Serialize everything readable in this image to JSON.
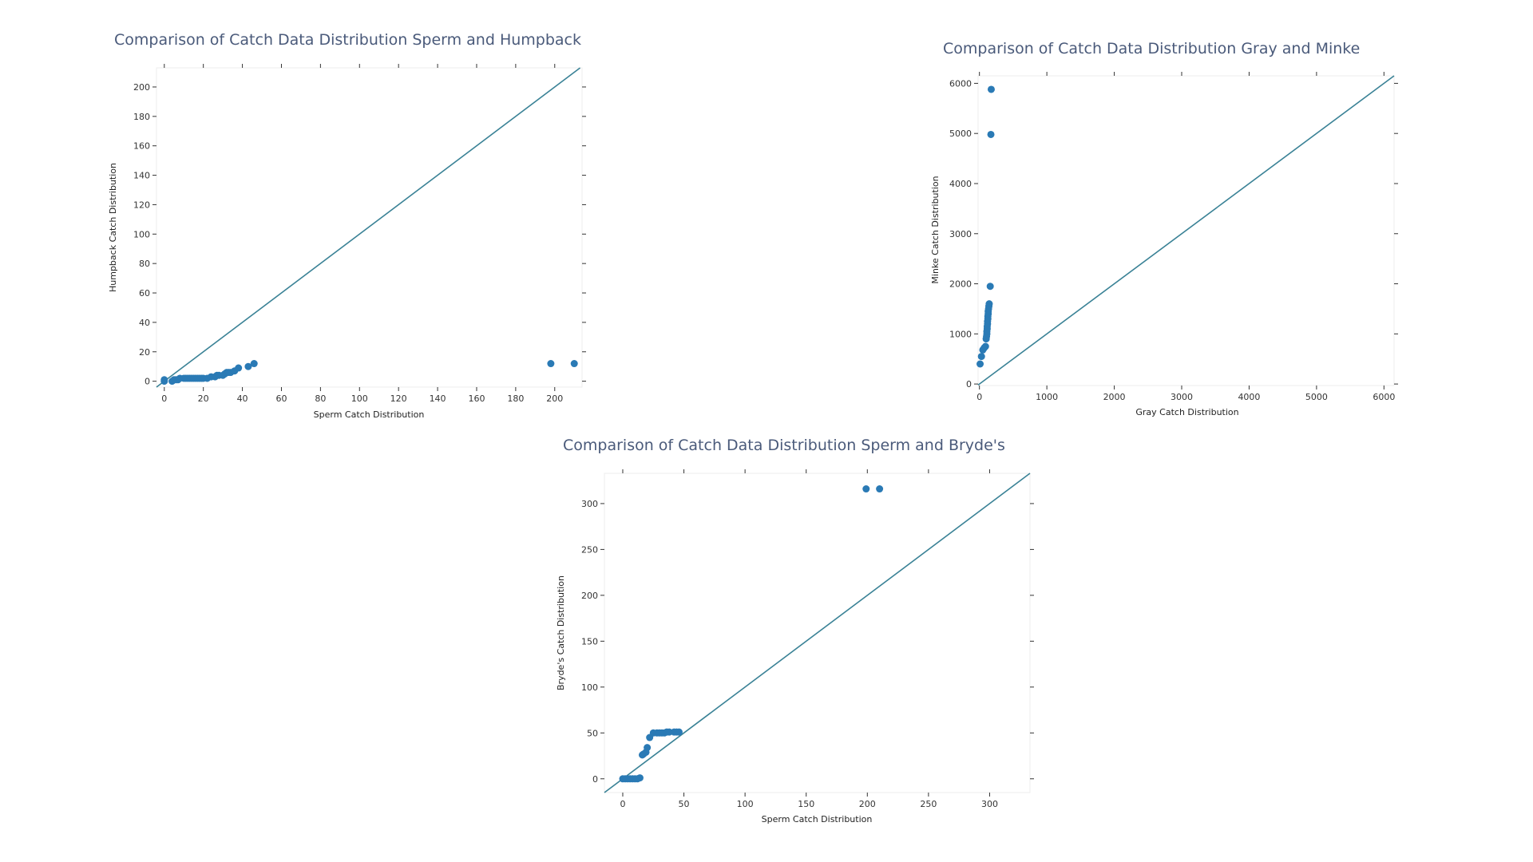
{
  "colors": {
    "point": "#2a7ab5",
    "line": "#3a8296",
    "title": "#4a5a7a"
  },
  "chart_data": [
    {
      "type": "scatter",
      "title": "Comparison of Catch Data Distribution Sperm and Humpback",
      "xlabel": "Sperm Catch Distribution",
      "ylabel": "Humpback Catch Distribution",
      "xlim": [
        -4,
        214
      ],
      "ylim": [
        -4,
        213
      ],
      "xticks": [
        0,
        20,
        40,
        60,
        80,
        100,
        120,
        140,
        160,
        180,
        200
      ],
      "yticks": [
        0,
        20,
        40,
        60,
        80,
        100,
        120,
        140,
        160,
        180,
        200
      ],
      "reference_line": "y=x",
      "points": [
        [
          0,
          0
        ],
        [
          0,
          1
        ],
        [
          4,
          0
        ],
        [
          5,
          1
        ],
        [
          6,
          1
        ],
        [
          7,
          1
        ],
        [
          8,
          2
        ],
        [
          10,
          2
        ],
        [
          11,
          2
        ],
        [
          12,
          2
        ],
        [
          13,
          2
        ],
        [
          14,
          2
        ],
        [
          15,
          2
        ],
        [
          16,
          2
        ],
        [
          17,
          2
        ],
        [
          18,
          2
        ],
        [
          19,
          2
        ],
        [
          20,
          2
        ],
        [
          22,
          2
        ],
        [
          24,
          3
        ],
        [
          26,
          3
        ],
        [
          27,
          4
        ],
        [
          28,
          4
        ],
        [
          30,
          4
        ],
        [
          31,
          5
        ],
        [
          32,
          6
        ],
        [
          33,
          6
        ],
        [
          34,
          6
        ],
        [
          36,
          7
        ],
        [
          38,
          9
        ],
        [
          43,
          10
        ],
        [
          46,
          12
        ],
        [
          198,
          12
        ],
        [
          210,
          12
        ]
      ]
    },
    {
      "type": "scatter",
      "title": "Comparison of Catch Data Distribution Gray and Minke",
      "xlabel": "Gray Catch Distribution",
      "ylabel": "Minke Catch Distribution",
      "xlim": [
        -20,
        6150
      ],
      "ylim": [
        -30,
        6150
      ],
      "xticks": [
        0,
        1000,
        2000,
        3000,
        4000,
        5000,
        6000
      ],
      "yticks": [
        0,
        1000,
        2000,
        3000,
        4000,
        5000,
        6000
      ],
      "reference_line": "y=x",
      "points": [
        [
          10,
          400
        ],
        [
          30,
          550
        ],
        [
          50,
          680
        ],
        [
          70,
          720
        ],
        [
          90,
          750
        ],
        [
          100,
          900
        ],
        [
          105,
          950
        ],
        [
          110,
          1000
        ],
        [
          110,
          1050
        ],
        [
          115,
          1100
        ],
        [
          115,
          1150
        ],
        [
          120,
          1200
        ],
        [
          120,
          1250
        ],
        [
          125,
          1300
        ],
        [
          125,
          1350
        ],
        [
          130,
          1400
        ],
        [
          130,
          1450
        ],
        [
          135,
          1500
        ],
        [
          140,
          1550
        ],
        [
          145,
          1600
        ],
        [
          160,
          1950
        ],
        [
          170,
          4980
        ],
        [
          175,
          5880
        ]
      ]
    },
    {
      "type": "scatter",
      "title": "Comparison of Catch Data Distribution Sperm and Bryde's",
      "xlabel": "Sperm Catch Distribution",
      "ylabel": "Bryde's Catch Distribution",
      "xlim": [
        -15,
        333
      ],
      "ylim": [
        -15,
        333
      ],
      "xticks": [
        0,
        50,
        100,
        150,
        200,
        250,
        300
      ],
      "yticks": [
        0,
        50,
        100,
        150,
        200,
        250,
        300
      ],
      "reference_line": "y=x",
      "points": [
        [
          0,
          0
        ],
        [
          2,
          0
        ],
        [
          4,
          0
        ],
        [
          6,
          0
        ],
        [
          8,
          0
        ],
        [
          10,
          0
        ],
        [
          12,
          0
        ],
        [
          14,
          1
        ],
        [
          16,
          26
        ],
        [
          17,
          27
        ],
        [
          19,
          29
        ],
        [
          20,
          34
        ],
        [
          22,
          45
        ],
        [
          25,
          50
        ],
        [
          28,
          50
        ],
        [
          30,
          50
        ],
        [
          32,
          50
        ],
        [
          34,
          50
        ],
        [
          36,
          51
        ],
        [
          38,
          51
        ],
        [
          42,
          51
        ],
        [
          44,
          51
        ],
        [
          46,
          51
        ],
        [
          199,
          316
        ],
        [
          210,
          316
        ]
      ]
    }
  ]
}
